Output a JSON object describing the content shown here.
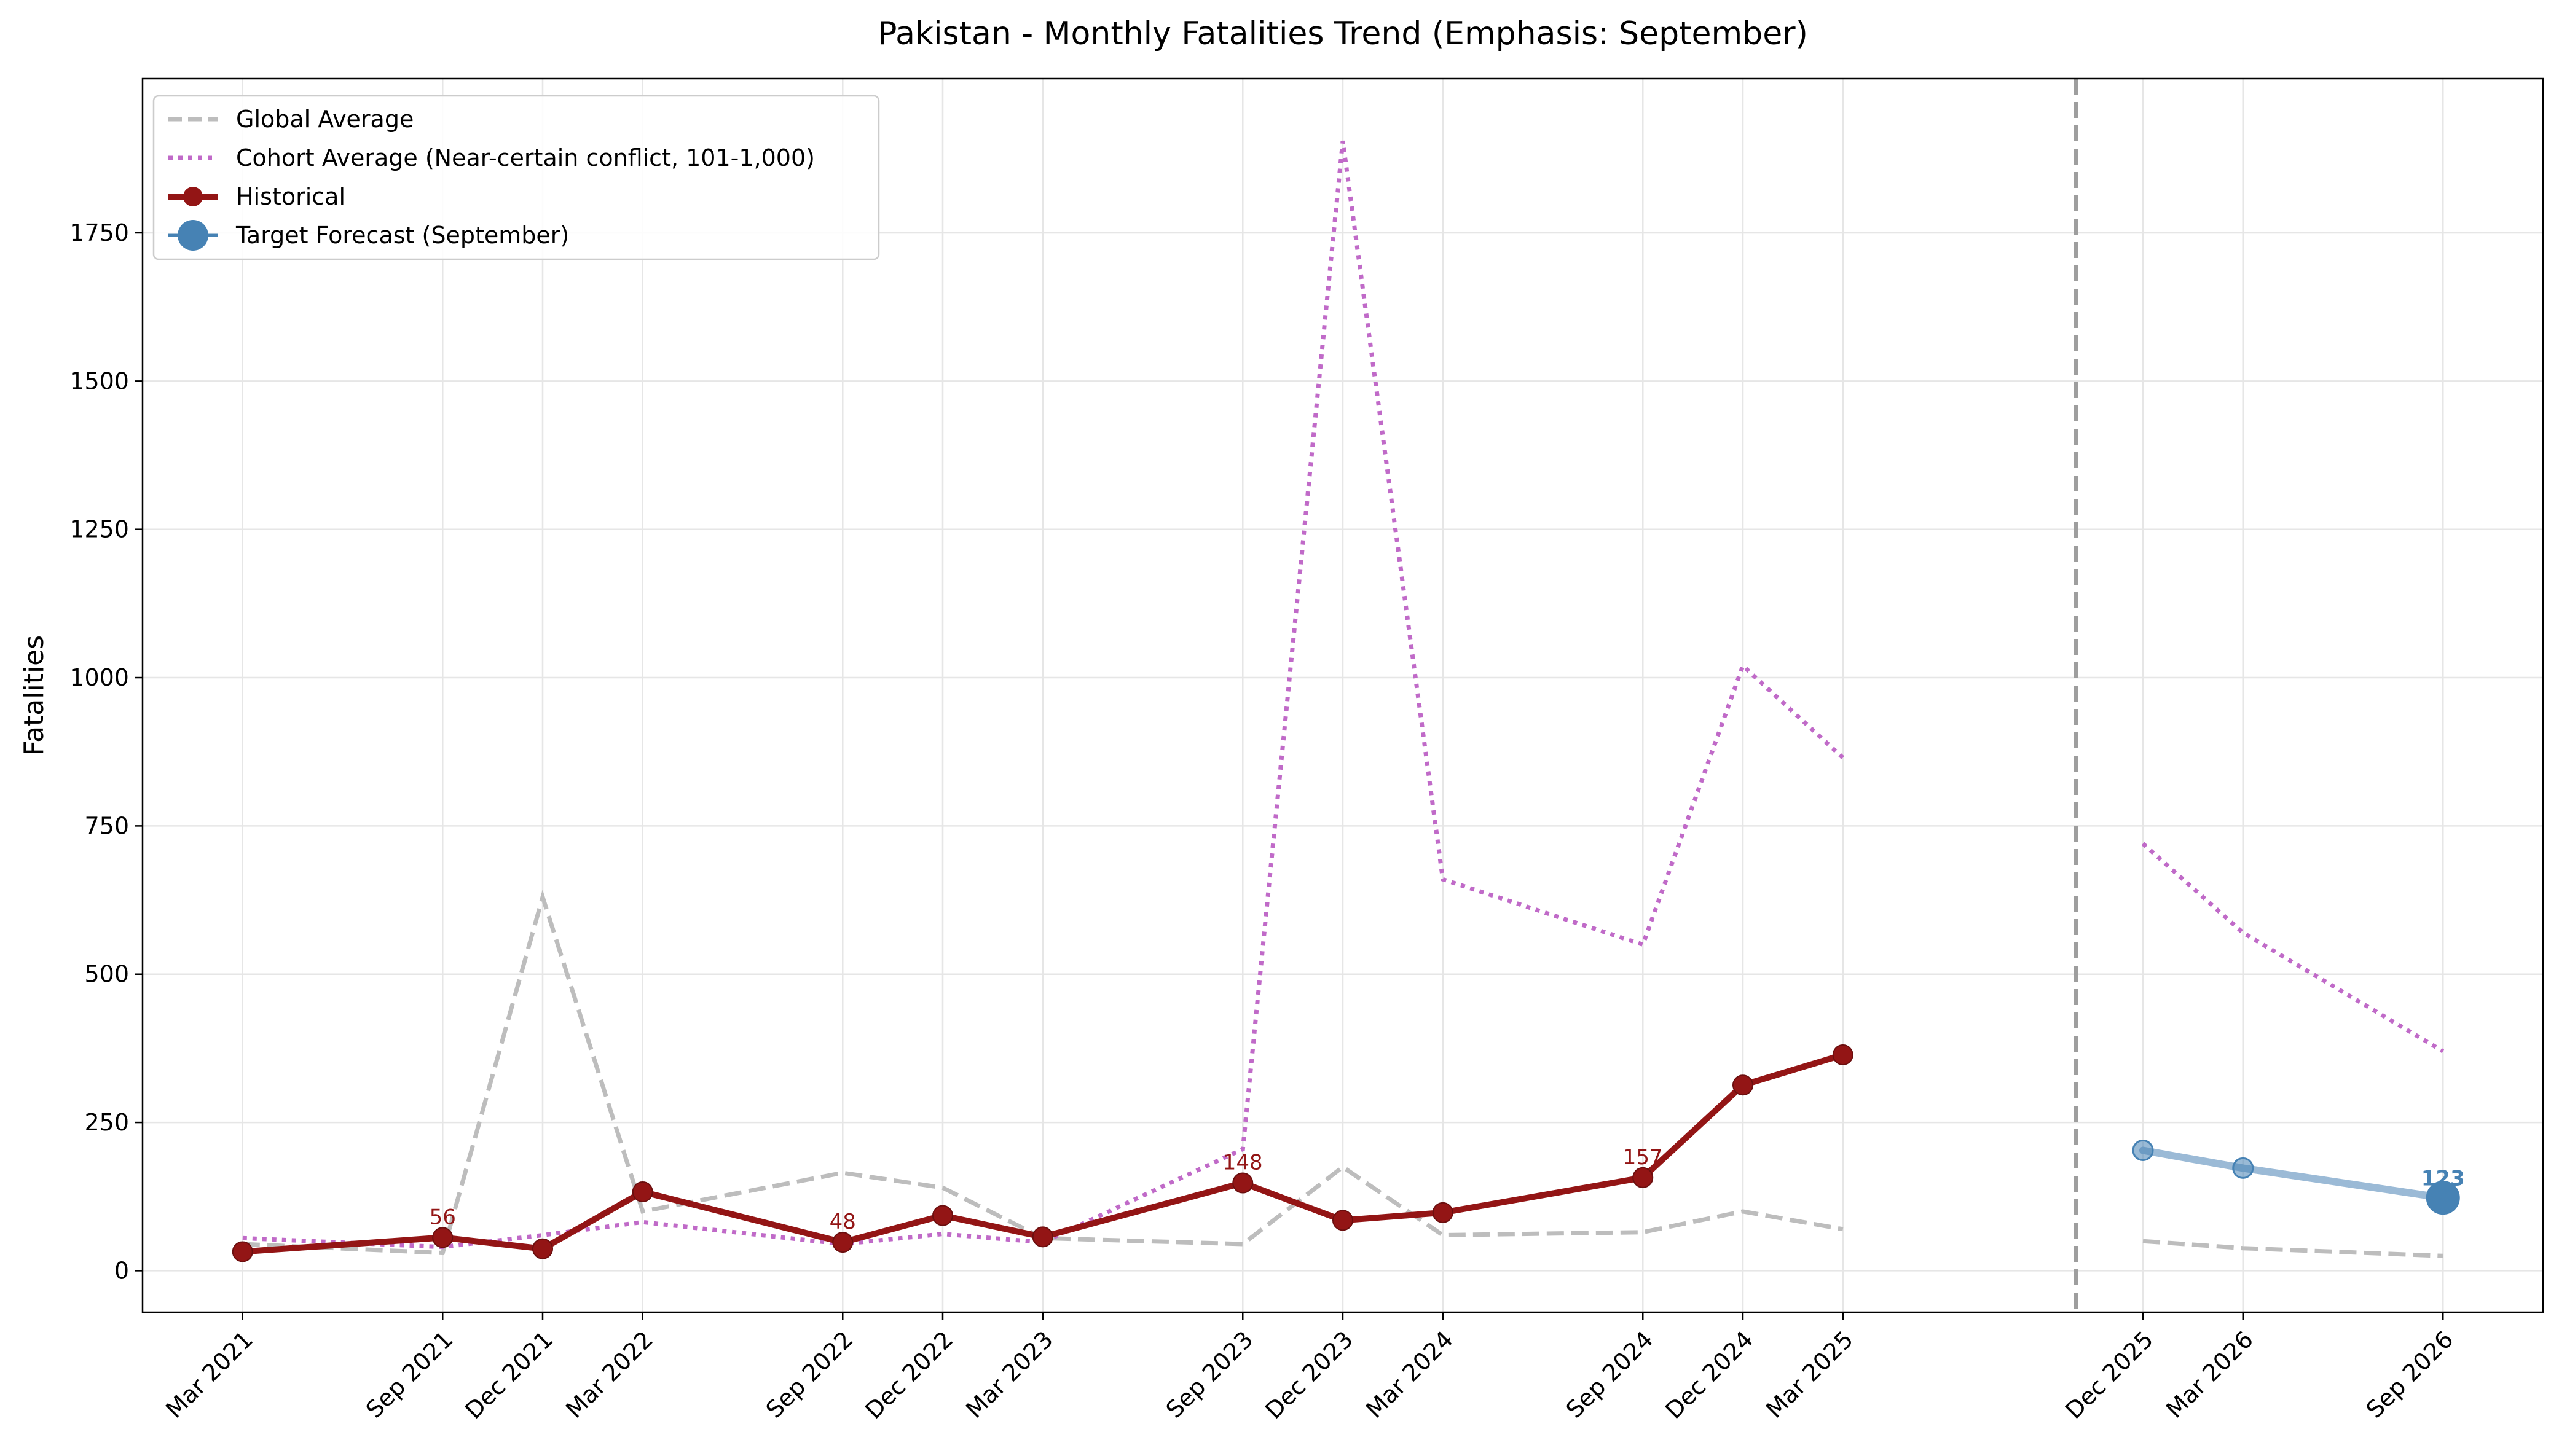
{
  "chart_data": {
    "type": "line",
    "title": "Pakistan - Monthly Fatalities Trend (Emphasis: September)",
    "xlabel": "",
    "ylabel": "Fatalities",
    "ylim": [
      -70,
      2010
    ],
    "y_ticks": [
      0,
      250,
      500,
      750,
      1000,
      1250,
      1500,
      1750
    ],
    "grid": true,
    "legend_position": "top-left",
    "x_dates": [
      "2021-03",
      "2021-09",
      "2021-12",
      "2022-03",
      "2022-09",
      "2022-12",
      "2023-03",
      "2023-09",
      "2023-12",
      "2024-03",
      "2024-09",
      "2024-12",
      "2025-03",
      "2025-12",
      "2026-03",
      "2026-09"
    ],
    "x_tick_labels": [
      "Mar 2021",
      "Sep 2021",
      "Dec 2021",
      "Mar 2022",
      "Sep 2022",
      "Dec 2022",
      "Mar 2023",
      "Sep 2023",
      "Dec 2023",
      "Mar 2024",
      "Sep 2024",
      "Dec 2024",
      "Mar 2025",
      "Dec 2025",
      "Mar 2026",
      "Sep 2026"
    ],
    "forecast_divider_date": "2025-10",
    "colors": {
      "global": "#bdbdbd",
      "cohort": "#c06ac8",
      "historical": "#931515",
      "forecast": "#4682b4",
      "forecast_line": "#9bbad6",
      "divider": "#9e9e9e"
    },
    "series": [
      {
        "name": "Global Average",
        "style": "dashed",
        "segments": [
          {
            "x": [
              "2021-03",
              "2021-09",
              "2021-12",
              "2022-03",
              "2022-09",
              "2022-12",
              "2023-03",
              "2023-09",
              "2023-12",
              "2024-03",
              "2024-09",
              "2024-12",
              "2025-03"
            ],
            "y": [
              45,
              30,
              630,
              100,
              165,
              140,
              55,
              45,
              175,
              60,
              65,
              100,
              70
            ]
          },
          {
            "x": [
              "2025-12",
              "2026-03",
              "2026-09"
            ],
            "y": [
              50,
              38,
              25
            ]
          }
        ]
      },
      {
        "name": "Cohort Average (Near-certain conflict, 101-1,000)",
        "style": "dotted",
        "segments": [
          {
            "x": [
              "2021-03",
              "2021-09",
              "2021-12",
              "2022-03",
              "2022-09",
              "2022-12",
              "2023-03",
              "2023-09",
              "2023-12",
              "2024-03",
              "2024-09",
              "2024-12",
              "2025-03"
            ],
            "y": [
              55,
              40,
              60,
              82,
              45,
              62,
              48,
              205,
              1905,
              660,
              550,
              1020,
              865
            ]
          },
          {
            "x": [
              "2025-12",
              "2026-03",
              "2026-09"
            ],
            "y": [
              720,
              570,
              370
            ]
          }
        ]
      },
      {
        "name": "Historical",
        "style": "solid-markers",
        "x": [
          "2021-03",
          "2021-09",
          "2021-12",
          "2022-03",
          "2022-09",
          "2022-12",
          "2023-03",
          "2023-09",
          "2023-12",
          "2024-03",
          "2024-09",
          "2024-12",
          "2025-03"
        ],
        "y": [
          32,
          56,
          37,
          133,
          48,
          93,
          57,
          148,
          85,
          98,
          157,
          313,
          364
        ]
      },
      {
        "name": "Target Forecast (September)",
        "style": "forecast",
        "x": [
          "2025-12",
          "2026-03",
          "2026-09"
        ],
        "y": [
          203,
          173,
          123
        ]
      }
    ],
    "annotations": [
      {
        "x": "2021-09",
        "y": 56,
        "text": "56"
      },
      {
        "x": "2022-09",
        "y": 48,
        "text": "48"
      },
      {
        "x": "2023-09",
        "y": 148,
        "text": "148"
      },
      {
        "x": "2024-09",
        "y": 157,
        "text": "157"
      },
      {
        "x": "2026-09",
        "y": 123,
        "text": "123",
        "emphasis": true
      }
    ]
  }
}
